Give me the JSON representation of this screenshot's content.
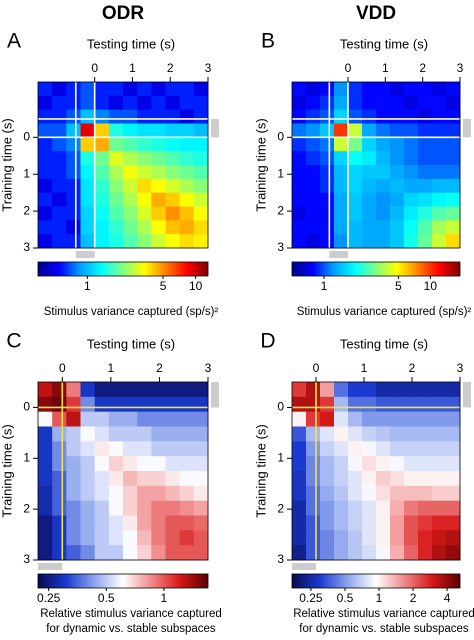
{
  "chart_data": [
    {
      "type": "heatmap",
      "panel": "A",
      "title": "ODR",
      "xlabel": "Testing time (s)",
      "ylabel": "Training time (s)",
      "xlim": [
        -1.5,
        3
      ],
      "ylim": [
        -1.5,
        3
      ],
      "y_reversed": true,
      "xticks": [
        0,
        1,
        2,
        3
      ],
      "yticks": [
        0,
        1,
        2,
        3
      ],
      "markers": [
        -0.5,
        0
      ],
      "marker_color": "#ffffff",
      "event_period": [
        -0.5,
        0
      ],
      "event_color": "#cccccc",
      "colormap": [
        "#00008f",
        "#0000ff",
        "#00a0ff",
        "#00ffff",
        "#80ff80",
        "#ffff00",
        "#ff8000",
        "#ff0000",
        "#800000"
      ],
      "clim": [
        0.35,
        13
      ],
      "color_scale": "log",
      "cticks": [
        1,
        5,
        10
      ],
      "colorbar_label": [
        "Stimulus variance captured (sp/s)²"
      ],
      "values": [
        [
          0.6,
          0.5,
          0.6,
          0.7,
          0.6,
          0.6,
          0.5,
          0.6,
          0.5,
          0.6,
          0.6,
          0.5
        ],
        [
          0.5,
          0.6,
          0.6,
          0.7,
          0.6,
          0.5,
          0.6,
          0.5,
          0.6,
          0.5,
          0.6,
          0.6
        ],
        [
          0.6,
          0.6,
          0.7,
          1.0,
          0.8,
          0.7,
          0.7,
          0.6,
          0.6,
          0.6,
          0.5,
          0.6
        ],
        [
          0.7,
          0.7,
          1.0,
          9,
          4,
          1.5,
          1.3,
          1.2,
          1.2,
          1.1,
          1.1,
          1.0
        ],
        [
          0.6,
          0.7,
          0.8,
          4,
          4.5,
          2,
          1.8,
          1.6,
          1.5,
          1.4,
          1.3,
          1.3
        ],
        [
          0.6,
          0.6,
          0.7,
          1.5,
          2,
          3,
          2.5,
          2.2,
          2,
          1.8,
          1.6,
          1.5
        ],
        [
          0.6,
          0.6,
          0.7,
          1.3,
          1.8,
          2.5,
          3.2,
          2.8,
          2.5,
          2.2,
          2,
          1.8
        ],
        [
          0.5,
          0.6,
          0.6,
          1.2,
          1.6,
          2.2,
          2.8,
          3.8,
          3.3,
          2.9,
          2.5,
          2.2
        ],
        [
          0.6,
          0.5,
          0.6,
          1.2,
          1.5,
          2,
          2.5,
          3.3,
          4.5,
          4,
          3.3,
          2.8
        ],
        [
          0.5,
          0.6,
          0.6,
          1.1,
          1.4,
          1.8,
          2.2,
          2.9,
          4,
          5,
          4.2,
          3.3
        ],
        [
          0.6,
          0.6,
          0.5,
          1.1,
          1.3,
          1.6,
          2,
          2.5,
          3.3,
          4.2,
          4.5,
          3.8
        ],
        [
          0.5,
          0.6,
          0.6,
          1,
          1.3,
          1.5,
          1.8,
          2.2,
          2.8,
          3.3,
          3.8,
          3.5
        ]
      ]
    },
    {
      "type": "heatmap",
      "panel": "B",
      "title": "VDD",
      "xlabel": "Testing time (s)",
      "ylabel": "Training time (s)",
      "xlim": [
        -1.5,
        3
      ],
      "ylim": [
        -1.5,
        3
      ],
      "y_reversed": true,
      "xticks": [
        0,
        1,
        2,
        3
      ],
      "yticks": [
        0,
        1,
        2,
        3
      ],
      "markers": [
        -0.5,
        0
      ],
      "marker_color": "#ffffff",
      "event_period": [
        -0.5,
        0
      ],
      "event_color": "#cccccc",
      "colormap": [
        "#00008f",
        "#0000ff",
        "#00a0ff",
        "#00ffff",
        "#80ff80",
        "#ffff00",
        "#ff8000",
        "#ff0000",
        "#800000"
      ],
      "clim": [
        0.5,
        19
      ],
      "color_scale": "log",
      "cticks": [
        1,
        5,
        10
      ],
      "colorbar_label": [
        "Stimulus variance captured (sp/s)²"
      ],
      "values": [
        [
          0.8,
          0.7,
          0.8,
          1.2,
          0.9,
          0.8,
          0.8,
          0.7,
          0.8,
          0.8,
          0.7,
          0.8
        ],
        [
          0.7,
          0.8,
          0.9,
          1.3,
          0.9,
          0.8,
          0.8,
          0.8,
          0.7,
          0.8,
          0.8,
          0.7
        ],
        [
          0.8,
          0.9,
          1.0,
          1.6,
          1.0,
          0.9,
          0.8,
          0.8,
          0.8,
          0.7,
          0.8,
          0.8
        ],
        [
          1.1,
          1.2,
          1.5,
          10,
          4,
          1.3,
          1.1,
          1.0,
          1.0,
          0.9,
          0.9,
          0.9
        ],
        [
          0.9,
          1.0,
          1.1,
          4,
          3,
          1.6,
          1.3,
          1.2,
          1.1,
          1.0,
          1.0,
          1.0
        ],
        [
          0.8,
          0.9,
          1.0,
          1.6,
          2,
          1.8,
          1.4,
          1.2,
          1.1,
          1.0,
          1.0,
          1.0
        ],
        [
          0.8,
          0.8,
          0.9,
          1.4,
          1.6,
          1.5,
          1.5,
          1.3,
          1.2,
          1.1,
          1.1,
          1.1
        ],
        [
          0.8,
          0.8,
          0.9,
          1.4,
          1.6,
          1.4,
          1.3,
          1.4,
          1.3,
          1.3,
          1.4,
          1.4
        ],
        [
          0.8,
          0.8,
          0.8,
          1.3,
          1.5,
          1.3,
          1.2,
          1.3,
          1.6,
          1.7,
          1.9,
          2
        ],
        [
          0.7,
          0.8,
          0.8,
          1.3,
          1.5,
          1.3,
          1.2,
          1.4,
          1.8,
          2.2,
          2.6,
          2.8
        ],
        [
          0.8,
          0.8,
          0.8,
          1.3,
          1.4,
          1.3,
          1.3,
          1.5,
          2,
          2.6,
          3.5,
          4
        ],
        [
          0.8,
          0.7,
          0.8,
          1.2,
          1.4,
          1.3,
          1.3,
          1.5,
          2.1,
          2.8,
          4,
          5.5
        ]
      ]
    },
    {
      "type": "heatmap",
      "panel": "C",
      "xlabel": "Testing time (s)",
      "ylabel": "Training time (s)",
      "xlim": [
        -0.5,
        3
      ],
      "ylim": [
        -0.5,
        3
      ],
      "y_reversed": true,
      "xticks": [
        0,
        1,
        2,
        3
      ],
      "yticks": [
        0,
        1,
        2,
        3
      ],
      "markers": [
        0
      ],
      "marker_color": "#f2e24a",
      "event_period": [
        -0.5,
        0
      ],
      "event_color": "#cccccc",
      "colormap": [
        "#08084f",
        "#1a3ad0",
        "#8fa6ee",
        "#ffffff",
        "#f08a8a",
        "#d81818",
        "#5a0000"
      ],
      "clim": [
        0.22,
        1.7
      ],
      "color_scale": "log",
      "cticks": [
        0.25,
        0.5,
        1
      ],
      "colorbar_label": [
        "Relative stimulus variance captured",
        "for dynamic vs. stable subspaces"
      ],
      "values": [
        [
          1.3,
          1.5,
          0.9,
          0.3,
          0.25,
          0.25,
          0.25,
          0.25,
          0.25,
          0.25,
          0.25,
          0.25
        ],
        [
          1.5,
          1.6,
          1.1,
          0.4,
          0.3,
          0.3,
          0.3,
          0.3,
          0.3,
          0.3,
          0.3,
          0.3
        ],
        [
          0.6,
          1.0,
          1.3,
          0.5,
          0.5,
          0.45,
          0.45,
          0.4,
          0.4,
          0.4,
          0.4,
          0.4
        ],
        [
          0.3,
          0.45,
          0.5,
          0.6,
          0.55,
          0.5,
          0.5,
          0.5,
          0.45,
          0.45,
          0.45,
          0.45
        ],
        [
          0.3,
          0.4,
          0.5,
          0.55,
          0.65,
          0.6,
          0.55,
          0.55,
          0.5,
          0.5,
          0.5,
          0.5
        ],
        [
          0.3,
          0.4,
          0.45,
          0.5,
          0.6,
          0.7,
          0.65,
          0.6,
          0.6,
          0.55,
          0.55,
          0.55
        ],
        [
          0.3,
          0.35,
          0.45,
          0.5,
          0.55,
          0.65,
          0.75,
          0.7,
          0.7,
          0.65,
          0.6,
          0.6
        ],
        [
          0.28,
          0.35,
          0.45,
          0.5,
          0.55,
          0.6,
          0.7,
          0.8,
          0.8,
          0.75,
          0.7,
          0.65
        ],
        [
          0.28,
          0.35,
          0.4,
          0.45,
          0.5,
          0.6,
          0.7,
          0.8,
          0.9,
          0.9,
          0.85,
          0.8
        ],
        [
          0.25,
          0.3,
          0.4,
          0.45,
          0.5,
          0.55,
          0.65,
          0.8,
          0.9,
          1.0,
          1.0,
          0.95
        ],
        [
          0.25,
          0.3,
          0.4,
          0.45,
          0.5,
          0.55,
          0.6,
          0.75,
          0.9,
          1.0,
          1.1,
          1.0
        ],
        [
          0.25,
          0.3,
          0.35,
          0.4,
          0.5,
          0.5,
          0.6,
          0.7,
          0.85,
          1.0,
          1.0,
          1.0
        ]
      ]
    },
    {
      "type": "heatmap",
      "panel": "D",
      "xlabel": "Testing time (s)",
      "ylabel": "Training time (s)",
      "xlim": [
        -0.5,
        3
      ],
      "ylim": [
        -0.5,
        3
      ],
      "y_reversed": true,
      "xticks": [
        0,
        1,
        2,
        3
      ],
      "yticks": [
        0,
        1,
        2,
        3
      ],
      "markers": [
        0
      ],
      "marker_color": "#f2e24a",
      "event_period": [
        -0.5,
        0
      ],
      "event_color": "#cccccc",
      "colormap": [
        "#08084f",
        "#1a3ad0",
        "#8fa6ee",
        "#ffffff",
        "#f08a8a",
        "#d81818",
        "#5a0000"
      ],
      "clim": [
        0.17,
        5.2
      ],
      "color_scale": "log",
      "cticks": [
        0.25,
        0.5,
        1,
        2,
        4
      ],
      "colorbar_label": [
        "Relative stimulus variance captured",
        "for dynamic vs. stable subspaces"
      ],
      "values": [
        [
          2.5,
          3.5,
          1.5,
          0.4,
          0.3,
          0.3,
          0.25,
          0.25,
          0.25,
          0.25,
          0.25,
          0.25
        ],
        [
          3.5,
          3.5,
          2.5,
          0.6,
          0.4,
          0.4,
          0.35,
          0.35,
          0.35,
          0.35,
          0.35,
          0.35
        ],
        [
          1.0,
          2.5,
          3.0,
          0.8,
          0.6,
          0.5,
          0.5,
          0.5,
          0.5,
          0.5,
          0.5,
          0.5
        ],
        [
          0.35,
          0.6,
          0.8,
          1.0,
          0.8,
          0.7,
          0.65,
          0.6,
          0.6,
          0.6,
          0.6,
          0.6
        ],
        [
          0.3,
          0.5,
          0.7,
          0.8,
          1.0,
          0.9,
          0.8,
          0.7,
          0.7,
          0.7,
          0.7,
          0.7
        ],
        [
          0.3,
          0.45,
          0.6,
          0.7,
          0.9,
          1.1,
          1.0,
          0.9,
          0.8,
          0.8,
          0.8,
          0.8
        ],
        [
          0.28,
          0.45,
          0.6,
          0.7,
          0.8,
          1.0,
          1.2,
          1.1,
          1.0,
          1.0,
          1.0,
          1.0
        ],
        [
          0.28,
          0.4,
          0.55,
          0.65,
          0.8,
          0.9,
          1.1,
          1.3,
          1.3,
          1.3,
          1.2,
          1.2
        ],
        [
          0.25,
          0.4,
          0.5,
          0.6,
          0.7,
          0.8,
          1.0,
          1.4,
          1.8,
          2,
          2,
          2
        ],
        [
          0.25,
          0.35,
          0.5,
          0.6,
          0.7,
          0.8,
          1.0,
          1.5,
          2.2,
          2.5,
          2.8,
          2.8
        ],
        [
          0.25,
          0.35,
          0.45,
          0.55,
          0.65,
          0.8,
          1.0,
          1.5,
          2.2,
          2.8,
          3.2,
          3.5
        ],
        [
          0.22,
          0.35,
          0.45,
          0.55,
          0.65,
          0.75,
          0.9,
          1.4,
          2,
          2.8,
          3.5,
          4
        ]
      ]
    }
  ]
}
